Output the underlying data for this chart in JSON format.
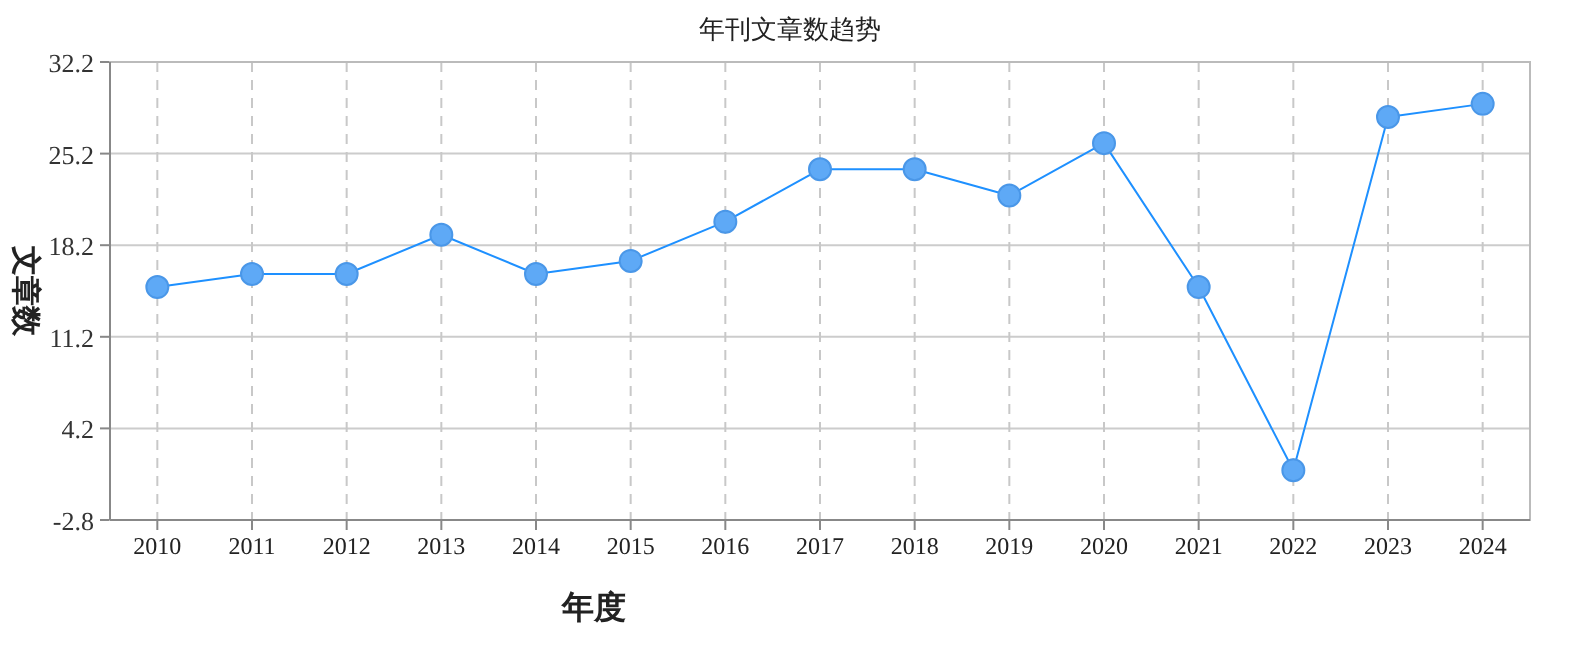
{
  "chart_data": {
    "type": "line",
    "title": "年刊文章数趋势",
    "xlabel": "年度",
    "ylabel": "文章数",
    "categories": [
      "2010",
      "2011",
      "2012",
      "2013",
      "2014",
      "2015",
      "2016",
      "2017",
      "2018",
      "2019",
      "2020",
      "2021",
      "2022",
      "2023",
      "2024"
    ],
    "series": [
      {
        "color": "#1e90ff",
        "values": [
          15,
          16,
          16,
          19,
          16,
          17,
          20,
          24,
          24,
          22,
          26,
          15,
          1,
          28,
          29
        ]
      }
    ],
    "ylim": [
      -2.8,
      32.2
    ],
    "yticks": [
      -2.8,
      4.2,
      11.2,
      18.2,
      25.2,
      32.2
    ],
    "grid": true,
    "marker": "circle",
    "line_style": "solid"
  }
}
